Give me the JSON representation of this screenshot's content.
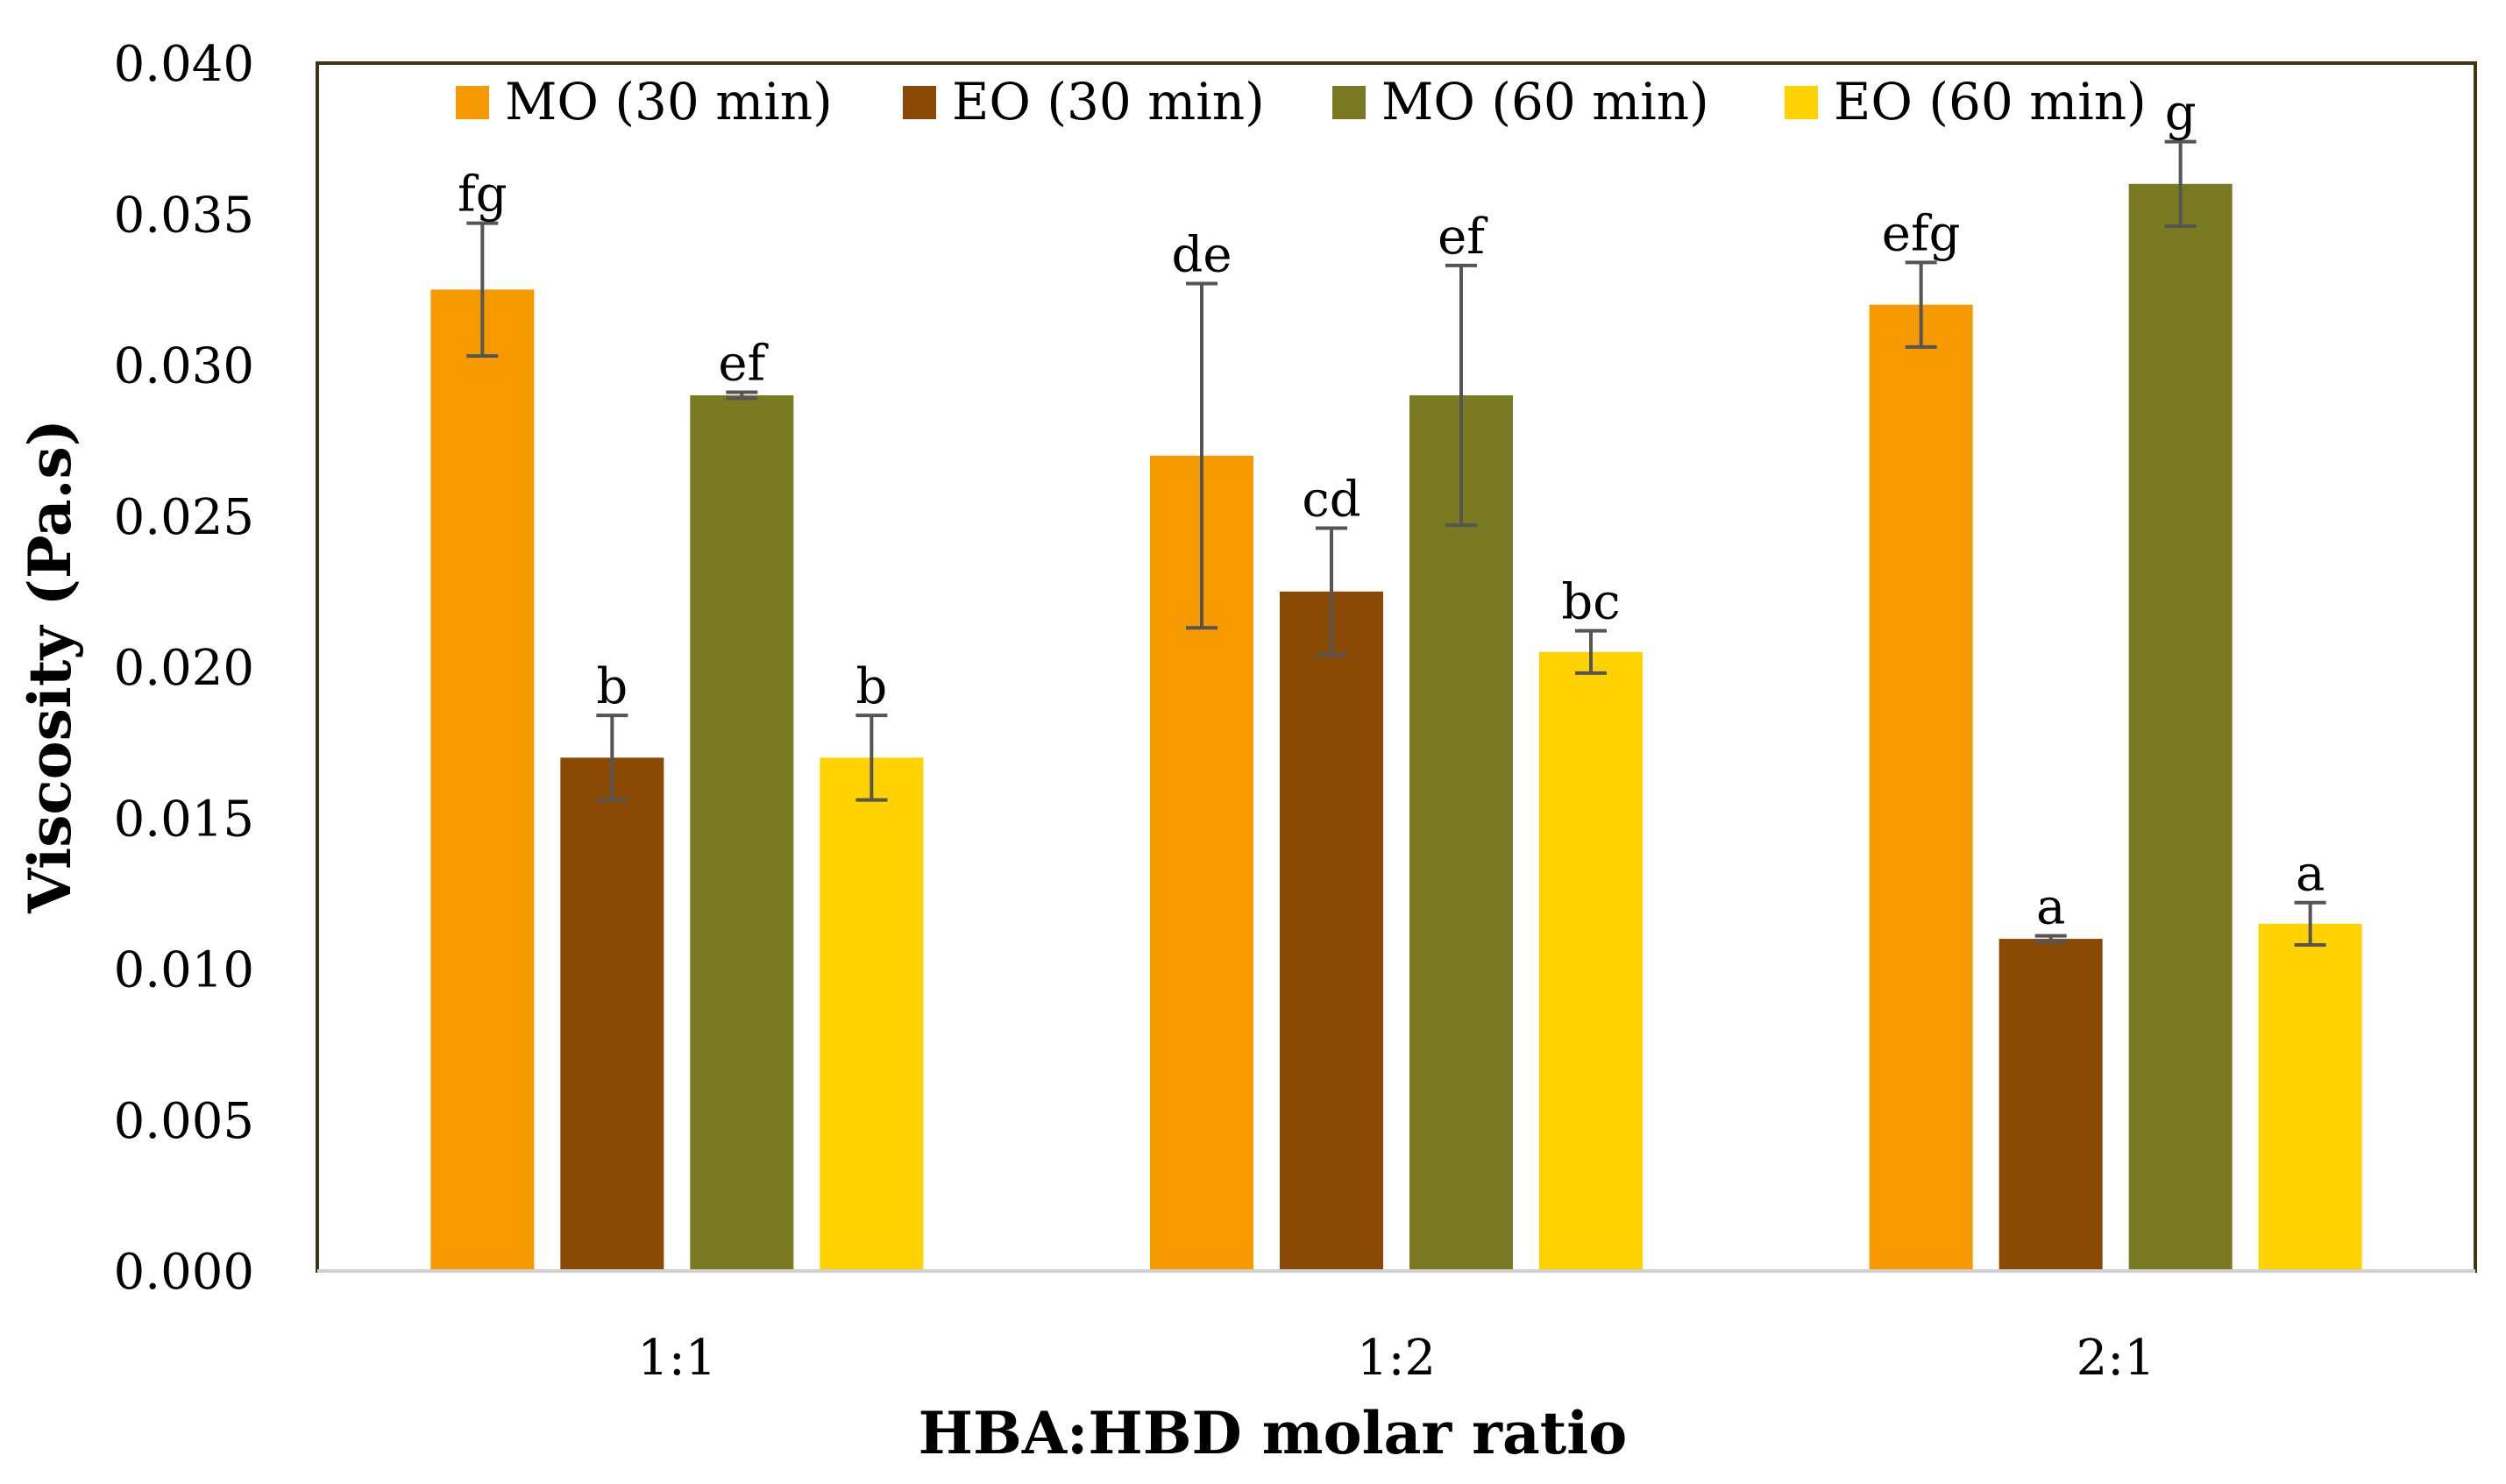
{
  "chart_data": {
    "type": "bar",
    "title": "",
    "xlabel": "HBA:HBD molar ratio",
    "ylabel": "Viscosity   (Pa.s)",
    "ylim": [
      0,
      0.04
    ],
    "yticks": [
      "0.000",
      "0.005",
      "0.010",
      "0.015",
      "0.020",
      "0.025",
      "0.030",
      "0.035",
      "0.040"
    ],
    "categories": [
      "1:1",
      "1:2",
      "2:1"
    ],
    "legend_position": "top",
    "grid": false,
    "series": [
      {
        "name": "MO (30 min)",
        "color": "#F79A00",
        "values": [
          0.0325,
          0.027,
          0.032
        ],
        "errors": [
          0.0022,
          0.0057,
          0.0014
        ],
        "letters": [
          "fg",
          "de",
          "efg"
        ]
      },
      {
        "name": "EO (30 min)",
        "color": "#8A4A04",
        "values": [
          0.017,
          0.0225,
          0.011
        ],
        "errors": [
          0.0014,
          0.0021,
          0.0001
        ],
        "letters": [
          "b",
          "cd",
          "a"
        ]
      },
      {
        "name": "MO (60 min)",
        "color": "#7A7A22",
        "values": [
          0.029,
          0.029,
          0.036
        ],
        "errors": [
          0.0001,
          0.0043,
          0.0014
        ],
        "letters": [
          "ef",
          "ef",
          "g"
        ]
      },
      {
        "name": "EO (60 min)",
        "color": "#FFD200",
        "values": [
          0.017,
          0.0205,
          0.0115
        ],
        "errors": [
          0.0014,
          0.0007,
          0.0007
        ],
        "letters": [
          "b",
          "bc",
          "a"
        ]
      }
    ]
  }
}
